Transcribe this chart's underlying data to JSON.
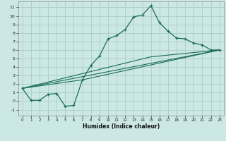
{
  "title": "",
  "xlabel": "Humidex (Indice chaleur)",
  "bg_color": "#cce8e4",
  "grid_color": "#aaccc8",
  "line_color": "#1a6b5a",
  "xlim": [
    -0.5,
    23.5
  ],
  "ylim": [
    -1.7,
    11.7
  ],
  "xticks": [
    0,
    1,
    2,
    3,
    4,
    5,
    6,
    7,
    8,
    9,
    10,
    11,
    12,
    13,
    14,
    15,
    16,
    17,
    18,
    19,
    20,
    21,
    22,
    23
  ],
  "yticks": [
    -1,
    0,
    1,
    2,
    3,
    4,
    5,
    6,
    7,
    8,
    9,
    10,
    11
  ],
  "line1_x": [
    0,
    1,
    2,
    3,
    4,
    5,
    6,
    7,
    8,
    9,
    10,
    11,
    12,
    13,
    14,
    15,
    16,
    17,
    18,
    19,
    20,
    21,
    22,
    23
  ],
  "line1_y": [
    1.5,
    0.1,
    0.1,
    0.8,
    0.9,
    -0.6,
    -0.5,
    2.5,
    4.2,
    5.3,
    7.3,
    7.7,
    8.4,
    9.9,
    10.1,
    11.2,
    9.2,
    8.2,
    7.4,
    7.3,
    6.8,
    6.6,
    6.0,
    6.0
  ],
  "line2_x": [
    0,
    23
  ],
  "line2_y": [
    1.5,
    6.0
  ],
  "line3_x": [
    0,
    15,
    23
  ],
  "line3_y": [
    1.5,
    5.2,
    6.0
  ],
  "line4_x": [
    0,
    7,
    23
  ],
  "line4_y": [
    1.5,
    2.5,
    6.0
  ]
}
